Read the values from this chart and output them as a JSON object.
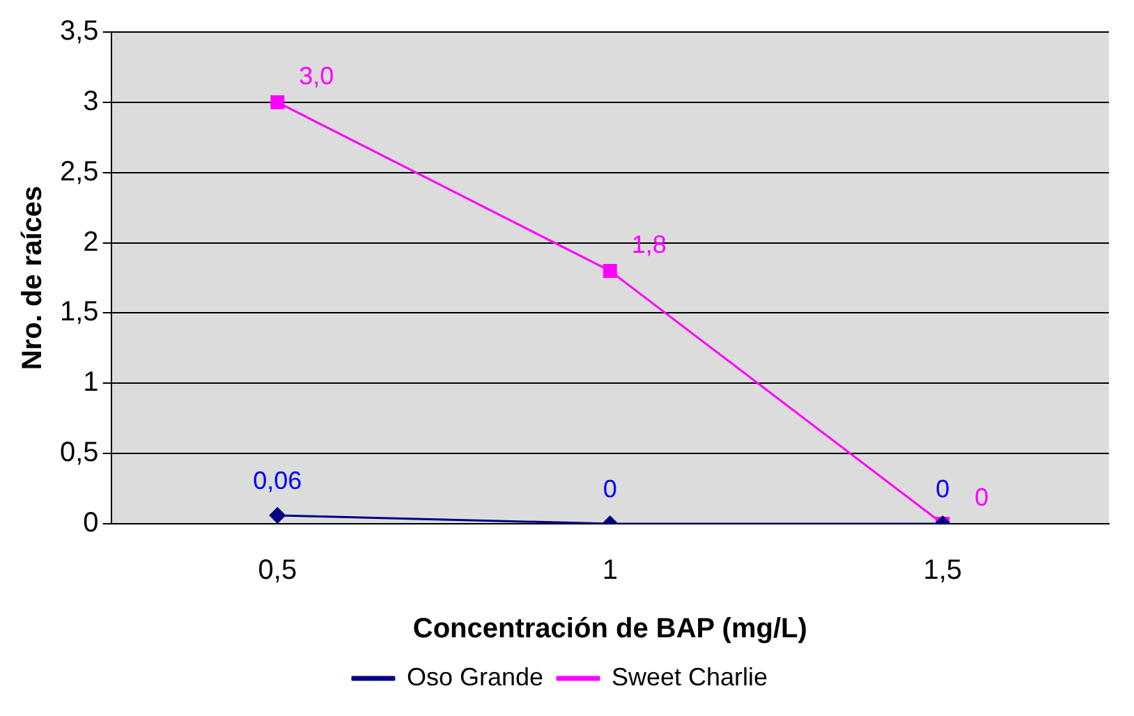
{
  "chart_data": {
    "type": "line",
    "xlabel": "Concentración de BAP (mg/L)",
    "ylabel": "Nro. de raíces",
    "categories": [
      "0,5",
      "1",
      "1,5"
    ],
    "series": [
      {
        "name": "Oso Grande",
        "color": "#000080",
        "marker": "diamond",
        "values": [
          0.06,
          0,
          0
        ],
        "value_labels": [
          "0,06",
          "0",
          "0"
        ]
      },
      {
        "name": "Sweet Charlie",
        "color": "#ff00ff",
        "marker": "square",
        "values": [
          3.0,
          1.8,
          0
        ],
        "value_labels": [
          "3,0",
          "1,8",
          "0"
        ]
      }
    ],
    "ylim": [
      0,
      3.5
    ],
    "yticks": [
      0,
      {
        "value": 0.5,
        "label": "0,5"
      },
      1,
      {
        "value": 1.5,
        "label": "1,5"
      },
      2,
      {
        "value": 2.5,
        "label": "2,5"
      },
      3,
      {
        "value": 3.5,
        "label": "3,5"
      }
    ],
    "grid": "y",
    "legend": "bottom",
    "line_style": "solid"
  }
}
